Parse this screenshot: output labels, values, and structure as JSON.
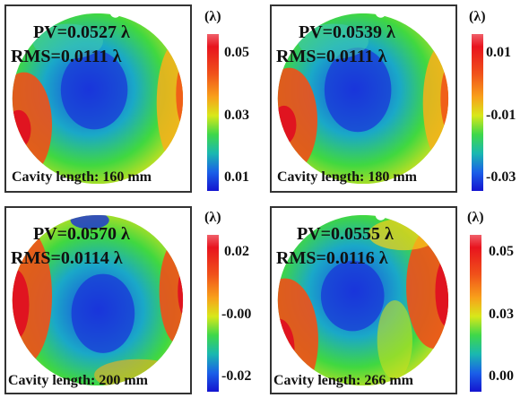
{
  "panels": [
    {
      "pv": "PV=0.0527 λ",
      "rms": "RMS=0.0111 λ",
      "cavity": "Cavity length: 160 mm",
      "unit": "(λ)",
      "ticks": [
        "0.05",
        "0.03",
        "0.01"
      ]
    },
    {
      "pv": "PV=0.0539 λ",
      "rms": "RMS=0.0111 λ",
      "cavity": "Cavity length: 180 mm",
      "unit": "(λ)",
      "ticks": [
        "0.01",
        "-0.01",
        "-0.03"
      ]
    },
    {
      "pv": "PV=0.0570 λ",
      "rms": "RMS=0.0114 λ",
      "cavity": "Cavity length: 200 mm",
      "unit": "(λ)",
      "ticks": [
        "0.02",
        "-0.00",
        "-0.02"
      ]
    },
    {
      "pv": "PV=0.0555 λ",
      "rms": "RMS=0.0116 λ",
      "cavity": "Cavity length: 266 mm",
      "unit": "(λ)",
      "ticks": [
        "0.05",
        "0.03",
        "0.00"
      ]
    }
  ],
  "colors": {
    "high": "#e8141e",
    "mid": "#3ed84a",
    "low": "#1414d0",
    "frame": "#333333"
  }
}
